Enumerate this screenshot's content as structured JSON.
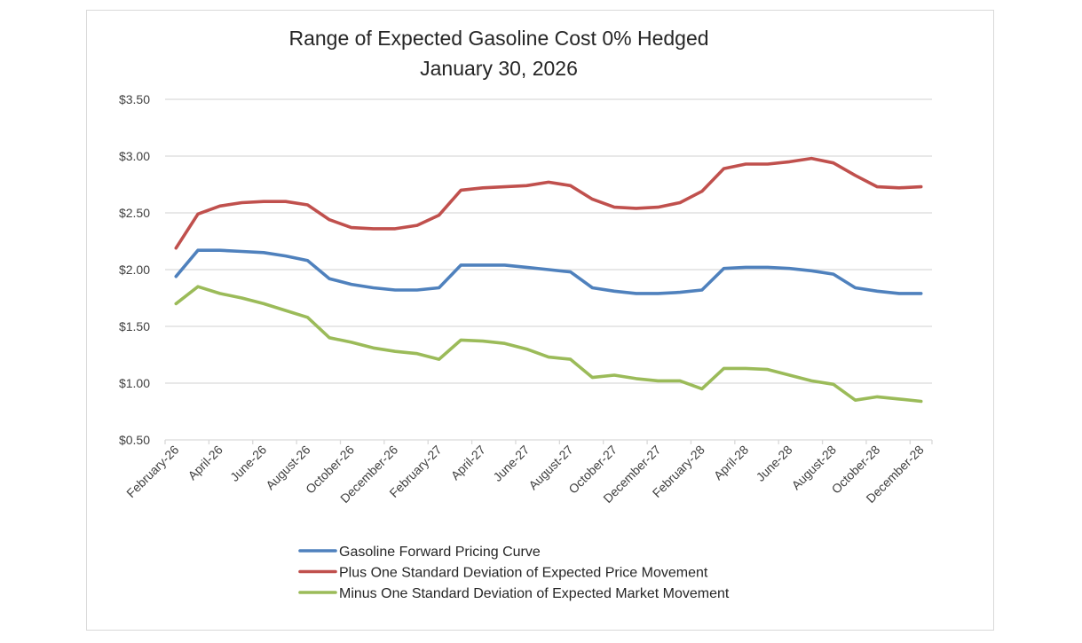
{
  "chart_data": {
    "type": "line",
    "title": [
      "Range of Expected Gasoline Cost 0% Hedged",
      "January 30, 2026"
    ],
    "xlabel": "",
    "ylabel": "",
    "ylim": [
      0.5,
      3.5
    ],
    "yticks": [
      0.5,
      1.0,
      1.5,
      2.0,
      2.5,
      3.0,
      3.5
    ],
    "ytick_labels": [
      "$0.50",
      "$1.00",
      "$1.50",
      "$2.00",
      "$2.50",
      "$3.00",
      "$3.50"
    ],
    "grid": true,
    "legend_position": "bottom",
    "categories": [
      "February-26",
      "March-26",
      "April-26",
      "May-26",
      "June-26",
      "July-26",
      "August-26",
      "September-26",
      "October-26",
      "November-26",
      "December-26",
      "January-27",
      "February-27",
      "March-27",
      "April-27",
      "May-27",
      "June-27",
      "July-27",
      "August-27",
      "September-27",
      "October-27",
      "November-27",
      "December-27",
      "January-28",
      "February-28",
      "March-28",
      "April-28",
      "May-28",
      "June-28",
      "July-28",
      "August-28",
      "September-28",
      "October-28",
      "November-28",
      "December-28"
    ],
    "x_tick_labels": [
      "February-26",
      "April-26",
      "June-26",
      "August-26",
      "October-26",
      "December-26",
      "February-27",
      "April-27",
      "June-27",
      "August-27",
      "October-27",
      "December-27",
      "February-28",
      "April-28",
      "June-28",
      "August-28",
      "October-28",
      "December-28"
    ],
    "series": [
      {
        "name": "Gasoline Forward Pricing Curve",
        "color": "#4F81BD",
        "values": [
          1.94,
          2.17,
          2.17,
          2.16,
          2.15,
          2.12,
          2.08,
          1.92,
          1.87,
          1.84,
          1.82,
          1.82,
          1.84,
          2.04,
          2.04,
          2.04,
          2.02,
          2.0,
          1.98,
          1.84,
          1.81,
          1.79,
          1.79,
          1.8,
          1.82,
          2.01,
          2.02,
          2.02,
          2.01,
          1.99,
          1.96,
          1.84,
          1.81,
          1.79,
          1.79
        ]
      },
      {
        "name": "Plus One Standard Deviation of Expected Price Movement",
        "color": "#C0504D",
        "values": [
          2.19,
          2.49,
          2.56,
          2.59,
          2.6,
          2.6,
          2.57,
          2.44,
          2.37,
          2.36,
          2.36,
          2.39,
          2.48,
          2.7,
          2.72,
          2.73,
          2.74,
          2.77,
          2.74,
          2.62,
          2.55,
          2.54,
          2.55,
          2.59,
          2.69,
          2.89,
          2.93,
          2.93,
          2.95,
          2.98,
          2.94,
          2.83,
          2.73,
          2.72,
          2.73
        ]
      },
      {
        "name": "Minus One Standard Deviation of Expected Market Movement",
        "color": "#9BBB59",
        "values": [
          1.7,
          1.85,
          1.79,
          1.75,
          1.7,
          1.64,
          1.58,
          1.4,
          1.36,
          1.31,
          1.28,
          1.26,
          1.21,
          1.38,
          1.37,
          1.35,
          1.3,
          1.23,
          1.21,
          1.05,
          1.07,
          1.04,
          1.02,
          1.02,
          0.95,
          1.13,
          1.13,
          1.12,
          1.07,
          1.02,
          0.99,
          0.85,
          0.88,
          0.86,
          0.84
        ]
      }
    ]
  }
}
